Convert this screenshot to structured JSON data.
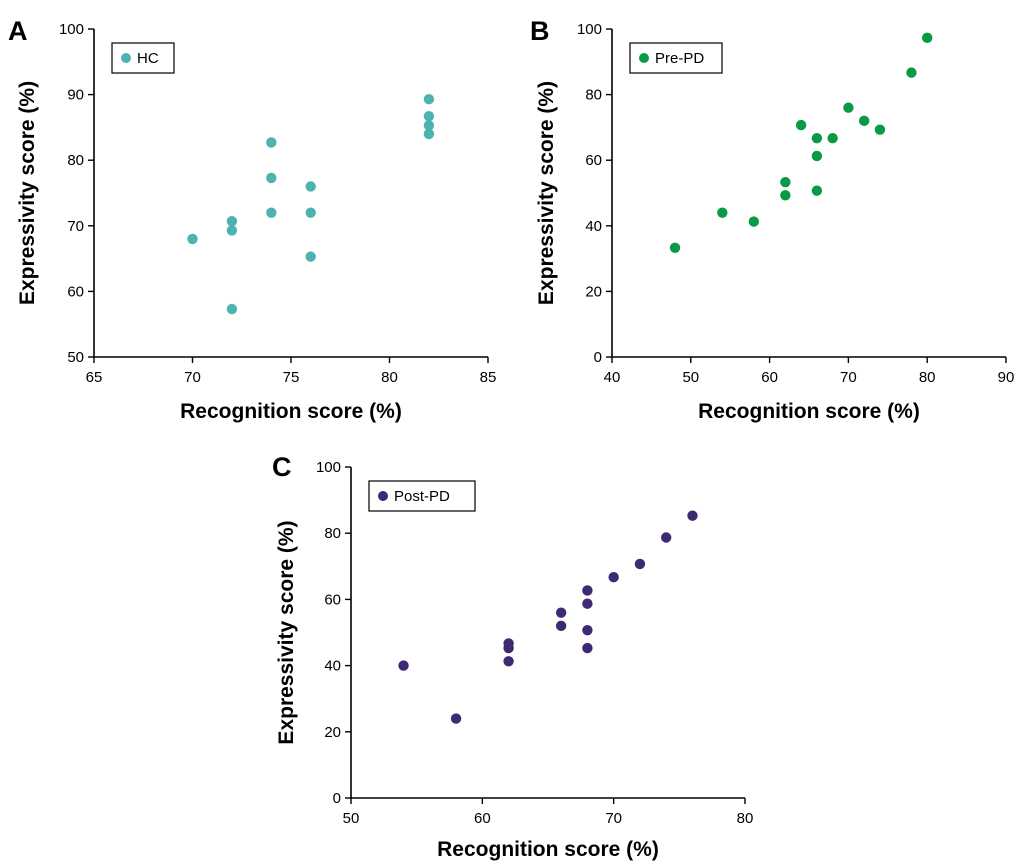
{
  "chart_data": [
    {
      "panel": "A",
      "type": "scatter",
      "xlabel": "Recognition score (%)",
      "ylabel": "Expressivity score (%)",
      "xlim": [
        65,
        85
      ],
      "ylim": [
        50,
        100
      ],
      "xticks": [
        65,
        70,
        75,
        80,
        85
      ],
      "yticks": [
        50,
        60,
        70,
        80,
        90,
        100
      ],
      "series": [
        {
          "name": "HC",
          "color": "#4db3b0",
          "points": [
            [
              70,
              68
            ],
            [
              72,
              70.7
            ],
            [
              72,
              69.3
            ],
            [
              72,
              57.3
            ],
            [
              74,
              82.7
            ],
            [
              74,
              77.3
            ],
            [
              74,
              72
            ],
            [
              76,
              76
            ],
            [
              76,
              72
            ],
            [
              76,
              65.3
            ],
            [
              82,
              89.3
            ],
            [
              82,
              86.7
            ],
            [
              82,
              85.3
            ],
            [
              82,
              84
            ]
          ]
        }
      ],
      "legend": "top-left",
      "grid": false
    },
    {
      "panel": "B",
      "type": "scatter",
      "xlabel": "Recognition score (%)",
      "ylabel": "Expressivity score (%)",
      "xlim": [
        40,
        90
      ],
      "ylim": [
        0,
        100
      ],
      "xticks": [
        40,
        50,
        60,
        70,
        80,
        90
      ],
      "yticks": [
        0,
        20,
        40,
        60,
        80,
        100
      ],
      "series": [
        {
          "name": "Pre-PD",
          "color": "#0a9a45",
          "points": [
            [
              48,
              33.3
            ],
            [
              54,
              44
            ],
            [
              58,
              41.3
            ],
            [
              62,
              53.3
            ],
            [
              62,
              49.3
            ],
            [
              64,
              70.7
            ],
            [
              66,
              66.7
            ],
            [
              66,
              61.3
            ],
            [
              66,
              50.7
            ],
            [
              68,
              66.7
            ],
            [
              70,
              76
            ],
            [
              72,
              72
            ],
            [
              74,
              69.3
            ],
            [
              78,
              86.7
            ],
            [
              80,
              97.3
            ]
          ]
        }
      ],
      "legend": "top-left",
      "grid": false
    },
    {
      "panel": "C",
      "type": "scatter",
      "xlabel": "Recognition score (%)",
      "ylabel": "Expressivity score (%)",
      "xlim": [
        50,
        80
      ],
      "ylim": [
        0,
        100
      ],
      "xticks": [
        50,
        60,
        70,
        80
      ],
      "yticks": [
        0,
        20,
        40,
        60,
        80,
        100
      ],
      "series": [
        {
          "name": "Post-PD",
          "color": "#3d2a72",
          "points": [
            [
              54,
              40
            ],
            [
              58,
              24
            ],
            [
              62,
              46.7
            ],
            [
              62,
              45.3
            ],
            [
              62,
              41.3
            ],
            [
              66,
              56
            ],
            [
              66,
              52
            ],
            [
              68,
              62.7
            ],
            [
              68,
              58.7
            ],
            [
              68,
              50.7
            ],
            [
              68,
              45.3
            ],
            [
              70,
              66.7
            ],
            [
              72,
              70.7
            ],
            [
              74,
              78.7
            ],
            [
              76,
              85.3
            ]
          ]
        }
      ],
      "legend": "top-left",
      "grid": false
    }
  ]
}
